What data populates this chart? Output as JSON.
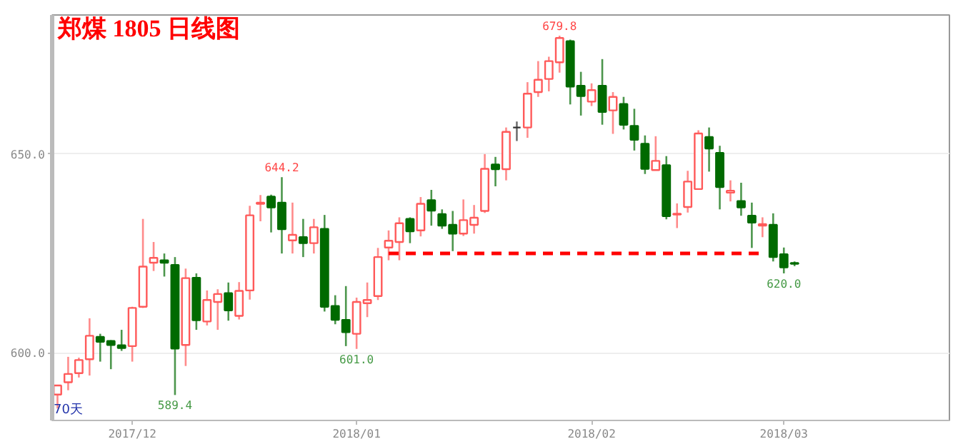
{
  "chart_data": {
    "type": "candlestick",
    "title": "郑煤 1805 日线图",
    "categories": [
      null,
      null,
      null,
      null,
      null,
      null,
      null,
      "2017/12",
      null,
      null,
      null,
      null,
      null,
      null,
      null,
      null,
      null,
      null,
      null,
      null,
      null,
      null,
      null,
      null,
      null,
      null,
      null,
      null,
      "2018/01",
      null,
      null,
      null,
      null,
      null,
      null,
      null,
      null,
      null,
      null,
      null,
      null,
      null,
      null,
      null,
      null,
      null,
      null,
      null,
      null,
      null,
      "2018/02",
      null,
      null,
      null,
      null,
      null,
      null,
      null,
      null,
      null,
      null,
      null,
      null,
      null,
      null,
      null,
      null,
      null,
      "2018/03",
      null
    ],
    "ohlc": [
      [
        589.5,
        591.8,
        586.0,
        591.8
      ],
      [
        592.6,
        599.0,
        590.6,
        594.7
      ],
      [
        594.9,
        598.8,
        593.8,
        598.2
      ],
      [
        598.4,
        608.7,
        594.3,
        604.3
      ],
      [
        604.0,
        604.8,
        597.8,
        602.8
      ],
      [
        603.0,
        603.2,
        595.9,
        602.0
      ],
      [
        601.9,
        605.8,
        600.5,
        601.2
      ],
      [
        601.7,
        611.6,
        597.8,
        611.3
      ],
      [
        611.6,
        633.7,
        611.3,
        621.7
      ],
      [
        622.7,
        627.9,
        620.6,
        623.9
      ],
      [
        623.3,
        625.0,
        619.2,
        622.7
      ],
      [
        622.1,
        624.1,
        589.4,
        601.1
      ],
      [
        602.0,
        621.2,
        596.7,
        618.8
      ],
      [
        618.9,
        620.0,
        605.8,
        608.2
      ],
      [
        607.9,
        615.7,
        606.9,
        613.3
      ],
      [
        612.8,
        616.0,
        605.8,
        614.8
      ],
      [
        615.0,
        617.7,
        608.1,
        610.7
      ],
      [
        609.3,
        617.8,
        608.4,
        615.6
      ],
      [
        615.7,
        637.0,
        613.4,
        634.6
      ],
      [
        637.5,
        639.7,
        633.1,
        637.8
      ],
      [
        639.3,
        639.8,
        630.3,
        636.6
      ],
      [
        637.8,
        644.2,
        625.0,
        631.1
      ],
      [
        628.3,
        637.8,
        625.0,
        629.7
      ],
      [
        629.1,
        633.7,
        624.1,
        627.6
      ],
      [
        627.6,
        633.7,
        625.0,
        631.6
      ],
      [
        631.2,
        634.7,
        610.4,
        611.6
      ],
      [
        611.8,
        614.5,
        607.2,
        608.3
      ],
      [
        608.3,
        616.8,
        601.7,
        605.2
      ],
      [
        604.8,
        613.9,
        601.0,
        612.8
      ],
      [
        612.5,
        617.7,
        609.0,
        613.3
      ],
      [
        614.3,
        626.4,
        613.3,
        624.1
      ],
      [
        626.5,
        630.8,
        623.3,
        628.2
      ],
      [
        627.9,
        634.1,
        623.3,
        632.6
      ],
      [
        633.7,
        634.1,
        627.6,
        630.6
      ],
      [
        630.8,
        639.2,
        629.3,
        637.5
      ],
      [
        638.4,
        641.0,
        632.0,
        635.8
      ],
      [
        634.9,
        636.1,
        631.2,
        632.0
      ],
      [
        632.2,
        635.7,
        625.6,
        630.0
      ],
      [
        630.0,
        638.6,
        629.4,
        633.4
      ],
      [
        632.2,
        637.2,
        630.0,
        634.0
      ],
      [
        635.7,
        650.0,
        635.2,
        646.3
      ],
      [
        647.4,
        649.3,
        641.9,
        646.2
      ],
      [
        646.2,
        656.7,
        643.4,
        655.6
      ],
      [
        656.7,
        658.2,
        653.3,
        656.7
      ],
      [
        656.7,
        668.1,
        654.1,
        665.2
      ],
      [
        665.6,
        673.4,
        664.4,
        668.7
      ],
      [
        668.9,
        674.5,
        665.8,
        673.4
      ],
      [
        673.1,
        679.8,
        670.5,
        679.2
      ],
      [
        678.4,
        678.8,
        662.5,
        667.0
      ],
      [
        667.2,
        670.7,
        659.7,
        664.6
      ],
      [
        663.2,
        667.8,
        662.1,
        666.1
      ],
      [
        667.2,
        673.9,
        657.4,
        660.6
      ],
      [
        661.0,
        665.6,
        655.1,
        664.4
      ],
      [
        662.6,
        664.4,
        656.2,
        657.4
      ],
      [
        657.1,
        661.4,
        650.9,
        653.6
      ],
      [
        652.6,
        654.7,
        645.0,
        646.3
      ],
      [
        646.0,
        654.5,
        646.0,
        648.3
      ],
      [
        647.2,
        649.5,
        633.6,
        634.4
      ],
      [
        634.8,
        637.6,
        631.4,
        635.0
      ],
      [
        636.7,
        645.8,
        635.3,
        643.1
      ],
      [
        641.2,
        656.0,
        641.2,
        655.2
      ],
      [
        654.3,
        656.7,
        645.6,
        651.4
      ],
      [
        650.3,
        652.1,
        636.1,
        641.7
      ],
      [
        640.3,
        643.4,
        638.1,
        640.8
      ],
      [
        638.2,
        642.8,
        634.5,
        636.6
      ],
      [
        634.5,
        637.8,
        626.4,
        632.8
      ],
      [
        632.0,
        634.1,
        629.1,
        632.4
      ],
      [
        632.2,
        635.1,
        623.0,
        624.1
      ],
      [
        624.8,
        626.5,
        620.0,
        621.5
      ],
      [
        622.6,
        623.0,
        621.8,
        622.4
      ]
    ],
    "colors": [
      "#ff5a5a",
      "#ff5a5a",
      "#ff5a5a",
      "#ff5a5a",
      "#006a00",
      "#006a00",
      "#006a00",
      "#ff5a5a",
      "#ff5a5a",
      "#ff5a5a",
      "#006a00",
      "#006a00",
      "#ff5a5a",
      "#006a00",
      "#ff5a5a",
      "#ff5a5a",
      "#006a00",
      "#ff5a5a",
      "#ff5a5a",
      "#ff5a5a",
      "#006a00",
      "#006a00",
      "#ff5a5a",
      "#006a00",
      "#ff5a5a",
      "#006a00",
      "#006a00",
      "#006a00",
      "#ff5a5a",
      "#ff5a5a",
      "#ff5a5a",
      "#ff5a5a",
      "#ff5a5a",
      "#006a00",
      "#ff5a5a",
      "#006a00",
      "#006a00",
      "#006a00",
      "#ff5a5a",
      "#ff5a5a",
      "#ff5a5a",
      "#006a00",
      "#ff5a5a",
      "#333333",
      "#ff5a5a",
      "#ff5a5a",
      "#ff5a5a",
      "#ff5a5a",
      "#006a00",
      "#006a00",
      "#ff5a5a",
      "#006a00",
      "#ff5a5a",
      "#006a00",
      "#006a00",
      "#006a00",
      "#ff5a5a",
      "#006a00",
      "#ff5a5a",
      "#ff5a5a",
      "#ff5a5a",
      "#006a00",
      "#006a00",
      "#ff5a5a",
      "#006a00",
      "#006a00",
      "#ff5a5a",
      "#006a00",
      "#006a00",
      "#006a00"
    ],
    "series": [
      {
        "type": "line",
        "color": "#ff0000",
        "line_style": "dashed",
        "values": [
          null,
          null,
          null,
          null,
          null,
          null,
          null,
          null,
          null,
          null,
          null,
          null,
          null,
          null,
          null,
          null,
          null,
          null,
          null,
          null,
          null,
          null,
          null,
          null,
          null,
          null,
          null,
          null,
          null,
          null,
          null,
          625.0,
          625.0,
          625.0,
          625.0,
          625.0,
          625.0,
          625.0,
          625.0,
          625.0,
          625.0,
          625.0,
          625.0,
          625.0,
          625.0,
          625.0,
          625.0,
          625.0,
          625.0,
          625.0,
          625.0,
          625.0,
          625.0,
          625.0,
          625.0,
          625.0,
          625.0,
          625.0,
          625.0,
          625.0,
          625.0,
          625.0,
          625.0,
          625.0,
          625.0,
          625.0,
          625.0,
          null,
          null,
          null
        ]
      }
    ],
    "ylim": [
      583,
      685
    ],
    "yticks": [
      {
        "value": 600,
        "label": "600.0"
      },
      {
        "value": 650,
        "label": "650.0"
      }
    ],
    "grid": "y",
    "annotations": [
      "70天",
      {
        "text": "679.8",
        "y": 679.8
      },
      {
        "text": "644.2",
        "y": 644.2
      },
      {
        "text": "601.0",
        "y": 601.0
      },
      {
        "text": "589.4",
        "y": 589.4
      },
      {
        "text": "620.0",
        "y": 620.0
      }
    ]
  }
}
